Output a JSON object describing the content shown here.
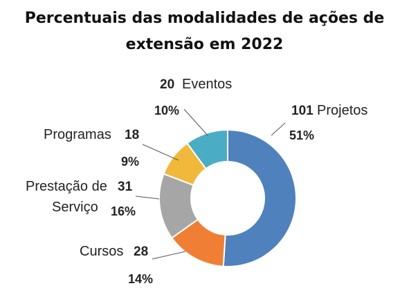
{
  "title": {
    "line1": "Percentuais das modalidades de ações de",
    "line2": "extensão em 2022"
  },
  "chart_data": {
    "type": "pie",
    "title": "Percentuais das modalidades de ações de extensão em 2022",
    "variant": "donut",
    "start_angle_deg": 0,
    "slices": [
      {
        "key": "projetos",
        "label": "Projetos",
        "count": "101",
        "percent": "51%",
        "value": 101,
        "color": "#4f81bd"
      },
      {
        "key": "cursos",
        "label": "Cursos",
        "count": "28",
        "percent": "14%",
        "value": 28,
        "color": "#f07f35"
      },
      {
        "key": "prestacao",
        "label": "Prestação de Serviço",
        "label_line1": "Prestação de",
        "label_line2": "Serviço",
        "count": "31",
        "percent": "16%",
        "value": 31,
        "color": "#a6a6a6"
      },
      {
        "key": "programas",
        "label": "Programas",
        "count": "18",
        "percent": "9%",
        "value": 18,
        "color": "#f0b93c"
      },
      {
        "key": "eventos",
        "label": "Eventos",
        "count": "20",
        "percent": "10%",
        "value": 20,
        "color": "#4bacc6"
      }
    ]
  }
}
